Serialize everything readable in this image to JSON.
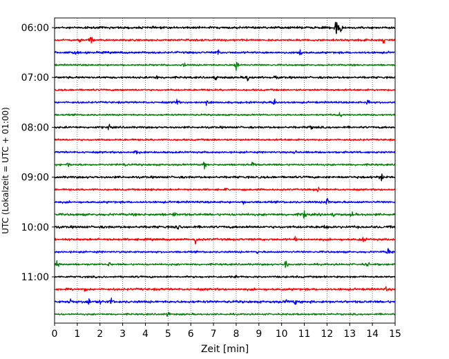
{
  "chart_data": {
    "type": "line",
    "title": "",
    "xlabel": "Zeit  [min]",
    "ylabel": "UTC (Lokalzeit = UTC + 01:00)",
    "xlim": [
      0,
      15
    ],
    "x_ticks": [
      0,
      1,
      2,
      3,
      4,
      5,
      6,
      7,
      8,
      9,
      10,
      11,
      12,
      13,
      14,
      15
    ],
    "x_tick_labels": [
      "0",
      "1",
      "2",
      "3",
      "4",
      "5",
      "6",
      "7",
      "8",
      "9",
      "10",
      "11",
      "12",
      "13",
      "14",
      "15"
    ],
    "y_ticks": [
      "06:00",
      "07:00",
      "08:00",
      "09:00",
      "10:00",
      "11:00"
    ],
    "grid": "vertical dotted at each minute",
    "colors": [
      "#000000",
      "#ff0000",
      "#0000ff",
      "#008000"
    ],
    "series": [
      {
        "start": "06:00",
        "color": "#000000",
        "amplitude": 1.3,
        "events": [
          [
            12.4,
            12
          ],
          [
            12.6,
            8
          ]
        ]
      },
      {
        "start": "06:15",
        "color": "#ff0000",
        "amplitude": 1.2,
        "events": [
          [
            1.6,
            8
          ],
          [
            1.1,
            4
          ],
          [
            14.5,
            7
          ]
        ]
      },
      {
        "start": "06:30",
        "color": "#0000ff",
        "amplitude": 1.2,
        "events": [
          [
            0.9,
            5
          ],
          [
            7.2,
            5
          ],
          [
            10.8,
            6
          ]
        ]
      },
      {
        "start": "06:45",
        "color": "#008000",
        "amplitude": 1.0,
        "events": [
          [
            8.0,
            8
          ],
          [
            5.7,
            4
          ]
        ]
      },
      {
        "start": "07:00",
        "color": "#000000",
        "amplitude": 1.2,
        "events": [
          [
            4.5,
            5
          ],
          [
            7.1,
            6
          ],
          [
            8.5,
            6
          ],
          [
            9.7,
            4
          ]
        ]
      },
      {
        "start": "07:15",
        "color": "#ff0000",
        "amplitude": 1.1,
        "events": [
          [
            3.0,
            2
          ]
        ]
      },
      {
        "start": "07:30",
        "color": "#0000ff",
        "amplitude": 1.1,
        "events": [
          [
            5.4,
            7
          ],
          [
            6.7,
            5
          ],
          [
            9.7,
            6
          ],
          [
            13.8,
            5
          ]
        ]
      },
      {
        "start": "07:45",
        "color": "#008000",
        "amplitude": 1.0,
        "events": [
          [
            12.6,
            5
          ]
        ]
      },
      {
        "start": "08:00",
        "color": "#000000",
        "amplitude": 1.2,
        "events": [
          [
            2.4,
            5
          ],
          [
            11.3,
            4
          ]
        ]
      },
      {
        "start": "08:15",
        "color": "#ff0000",
        "amplitude": 1.1,
        "events": []
      },
      {
        "start": "08:30",
        "color": "#0000ff",
        "amplitude": 1.1,
        "events": [
          [
            3.6,
            6
          ],
          [
            10.6,
            4
          ]
        ]
      },
      {
        "start": "08:45",
        "color": "#008000",
        "amplitude": 1.1,
        "events": [
          [
            0.6,
            5
          ],
          [
            3.1,
            4
          ],
          [
            6.6,
            6
          ],
          [
            8.7,
            5
          ]
        ]
      },
      {
        "start": "09:00",
        "color": "#000000",
        "amplitude": 1.3,
        "events": [
          [
            14.4,
            9
          ]
        ]
      },
      {
        "start": "09:15",
        "color": "#ff0000",
        "amplitude": 1.1,
        "events": [
          [
            4.3,
            4
          ],
          [
            7.6,
            3
          ],
          [
            11.6,
            5
          ]
        ]
      },
      {
        "start": "09:30",
        "color": "#0000ff",
        "amplitude": 1.2,
        "events": [
          [
            8.3,
            4
          ],
          [
            12.0,
            8
          ]
        ]
      },
      {
        "start": "09:45",
        "color": "#008000",
        "amplitude": 1.4,
        "events": [
          [
            11.0,
            8
          ],
          [
            5.3,
            4
          ],
          [
            12.3,
            4
          ],
          [
            13.1,
            4
          ]
        ]
      },
      {
        "start": "10:00",
        "color": "#000000",
        "amplitude": 1.4,
        "events": [
          [
            5.5,
            6
          ],
          [
            11.9,
            5
          ]
        ]
      },
      {
        "start": "10:15",
        "color": "#ff0000",
        "amplitude": 1.3,
        "events": [
          [
            6.2,
            7
          ],
          [
            13.6,
            6
          ],
          [
            10.6,
            3
          ]
        ]
      },
      {
        "start": "10:30",
        "color": "#0000ff",
        "amplitude": 1.1,
        "events": [
          [
            8.9,
            4
          ],
          [
            14.7,
            6
          ]
        ]
      },
      {
        "start": "10:45",
        "color": "#008000",
        "amplitude": 1.1,
        "events": [
          [
            0.1,
            8
          ],
          [
            2.4,
            4
          ],
          [
            10.2,
            8
          ],
          [
            13.8,
            5
          ]
        ]
      },
      {
        "start": "11:00",
        "color": "#000000",
        "amplitude": 1.1,
        "events": [
          [
            8.0,
            3
          ]
        ]
      },
      {
        "start": "11:15",
        "color": "#ff0000",
        "amplitude": 1.3,
        "events": [
          [
            1.3,
            3
          ],
          [
            14.6,
            3
          ]
        ]
      },
      {
        "start": "11:30",
        "color": "#0000ff",
        "amplitude": 1.4,
        "events": [
          [
            0.7,
            5
          ],
          [
            1.5,
            6
          ],
          [
            2.0,
            5
          ],
          [
            2.5,
            6
          ],
          [
            10.2,
            5
          ],
          [
            10.6,
            5
          ]
        ]
      },
      {
        "start": "11:45",
        "color": "#008000",
        "amplitude": 1.0,
        "events": [
          [
            5.0,
            5
          ]
        ]
      }
    ]
  }
}
